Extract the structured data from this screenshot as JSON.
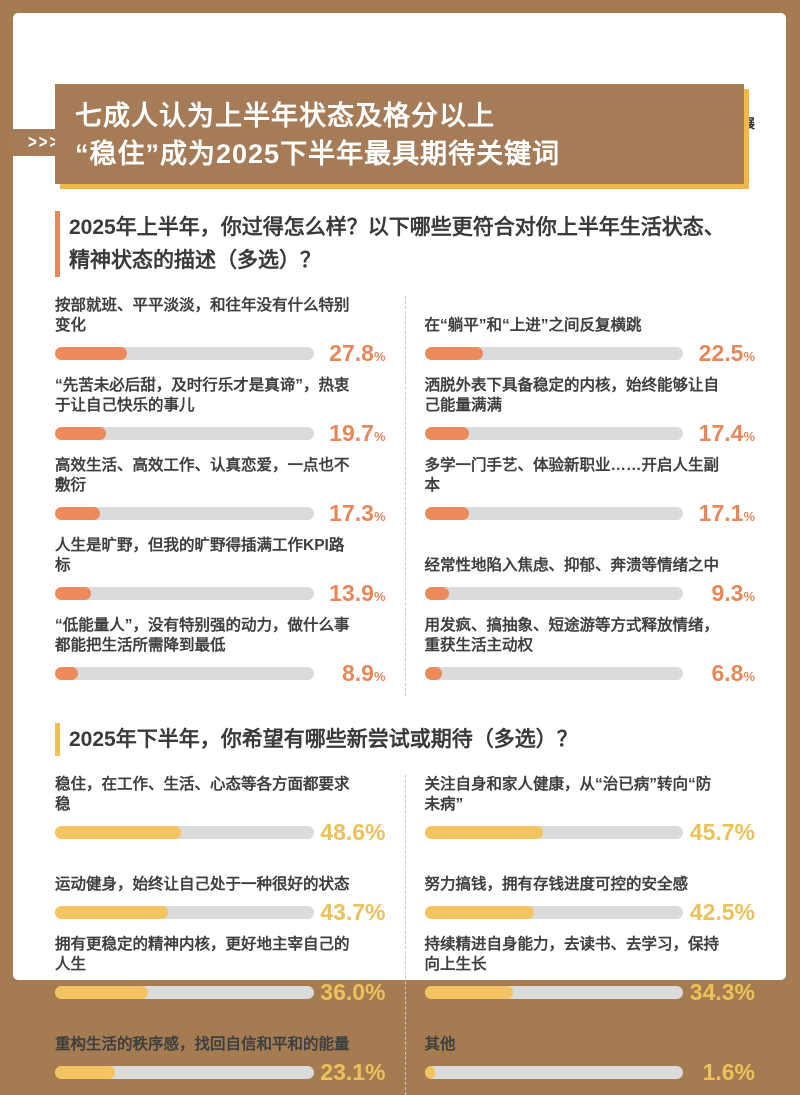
{
  "page": {
    "frame_color": "#a57b52",
    "background": "#ffffff"
  },
  "logo": {
    "icon": "blue-diagonal-stripes",
    "lines": [
      "京东消费",
      "及产业发展",
      "研究院"
    ]
  },
  "header": {
    "tab_marks": ">>>",
    "banner_color": "#a67c58",
    "banner_shadow_color": "#f0b849",
    "title_line1": "七成人认为上半年状态及格分以上",
    "title_line2": "“稳住”成为2025下半年最具期待关键词"
  },
  "sections": [
    {
      "title": "2025年上半年，你过得怎么样？以下哪些更符合对你上半年生活状态、精神状态的描述（多选）？",
      "accent_color": "#e8875a",
      "bar_color": "#ed8a5b",
      "value_color": "#e8875a",
      "percent_small": true,
      "columns": {
        "left": [
          {
            "label": "按部就班、平平淡淡，和往年没有什么特别变化",
            "value": 27.8,
            "display": "27.8"
          },
          {
            "label": "“先苦未必后甜，及时行乐才是真谛”，热衷于让自己快乐的事儿",
            "value": 19.7,
            "display": "19.7"
          },
          {
            "label": "高效生活、高效工作、认真恋爱，一点也不敷衍",
            "value": 17.3,
            "display": "17.3"
          },
          {
            "label": "人生是旷野，但我的旷野得插满工作KPI路标",
            "value": 13.9,
            "display": "13.9"
          },
          {
            "label": "“低能量人”，没有特别强的动力，做什么事都能把生活所需降到最低",
            "value": 8.9,
            "display": "8.9"
          }
        ],
        "right": [
          {
            "label": "在“躺平”和“上进”之间反复横跳",
            "value": 22.5,
            "display": "22.5"
          },
          {
            "label": "洒脱外表下具备稳定的内核，始终能够让自己能量满满",
            "value": 17.4,
            "display": "17.4"
          },
          {
            "label": "多学一门手艺、体验新职业……开启人生副本",
            "value": 17.1,
            "display": "17.1"
          },
          {
            "label": "经常性地陷入焦虑、抑郁、奔溃等情绪之中",
            "value": 9.3,
            "display": "9.3"
          },
          {
            "label": "用发疯、搞抽象、短途游等方式释放情绪，重获生活主动权",
            "value": 6.8,
            "display": "6.8"
          }
        ]
      }
    },
    {
      "title": "2025年下半年，你希望有哪些新尝试或期待（多选）？",
      "accent_color": "#f0c050",
      "bar_color": "#f3c45f",
      "value_color": "#edc158",
      "percent_small": false,
      "columns": {
        "left": [
          {
            "label": "稳住，在工作、生活、心态等各方面都要求稳",
            "value": 48.6,
            "display": "48.6"
          },
          {
            "label": "运动健身，始终让自己处于一种很好的状态",
            "value": 43.7,
            "display": "43.7"
          },
          {
            "label": "拥有更稳定的精神内核，更好地主宰自己的人生",
            "value": 36.0,
            "display": "36.0"
          },
          {
            "label": "重构生活的秩序感，找回自信和平和的能量",
            "value": 23.1,
            "display": "23.1"
          }
        ],
        "right": [
          {
            "label": "关注自身和家人健康，从“治已病”转向“防未病”",
            "value": 45.7,
            "display": "45.7"
          },
          {
            "label": "努力搞钱，拥有存钱进度可控的安全感",
            "value": 42.5,
            "display": "42.5"
          },
          {
            "label": "持续精进自身能力，去读书、去学习，保持向上生长",
            "value": 34.3,
            "display": "34.3"
          },
          {
            "label": "其他",
            "value": 1.6,
            "display": "1.6"
          }
        ]
      }
    }
  ],
  "chart_data": [
    {
      "type": "bar",
      "title": "2025年上半年，你过得怎么样？以下哪些更符合对你上半年生活状态、精神状态的描述（多选）？",
      "unit": "%",
      "xlim": [
        0,
        100
      ],
      "categories": [
        "按部就班、平平淡淡，和往年没有什么特别变化",
        "“先苦未必后甜，及时行乐才是真谛”，热衷于让自己快乐的事儿",
        "高效生活、高效工作、认真恋爱，一点也不敷衍",
        "人生是旷野，但我的旷野得插满工作KPI路标",
        "“低能量人”，没有特别强的动力，做什么事都能把生活所需降到最低",
        "在“躺平”和“上进”之间反复横跳",
        "洒脱外表下具备稳定的内核，始终能够让自己能量满满",
        "多学一门手艺、体验新职业……开启人生副本",
        "经常性地陷入焦虑、抑郁、奔溃等情绪之中",
        "用发疯、搞抽象、短途游等方式释放情绪，重获生活主动权"
      ],
      "values": [
        27.8,
        19.7,
        17.3,
        13.9,
        8.9,
        22.5,
        17.4,
        17.1,
        9.3,
        6.8
      ],
      "bar_color": "#ed8a5b"
    },
    {
      "type": "bar",
      "title": "2025年下半年，你希望有哪些新尝试或期待（多选）？",
      "unit": "%",
      "xlim": [
        0,
        100
      ],
      "categories": [
        "稳住，在工作、生活、心态等各方面都要求稳",
        "运动健身，始终让自己处于一种很好的状态",
        "拥有更稳定的精神内核，更好地主宰自己的人生",
        "重构生活的秩序感，找回自信和平和的能量",
        "关注自身和家人健康，从“治已病”转向“防未病”",
        "努力搞钱，拥有存钱进度可控的安全感",
        "持续精进自身能力，去读书、去学习，保持向上生长",
        "其他"
      ],
      "values": [
        48.6,
        43.7,
        36.0,
        23.1,
        45.7,
        42.5,
        34.3,
        1.6
      ],
      "bar_color": "#f3c45f"
    }
  ]
}
